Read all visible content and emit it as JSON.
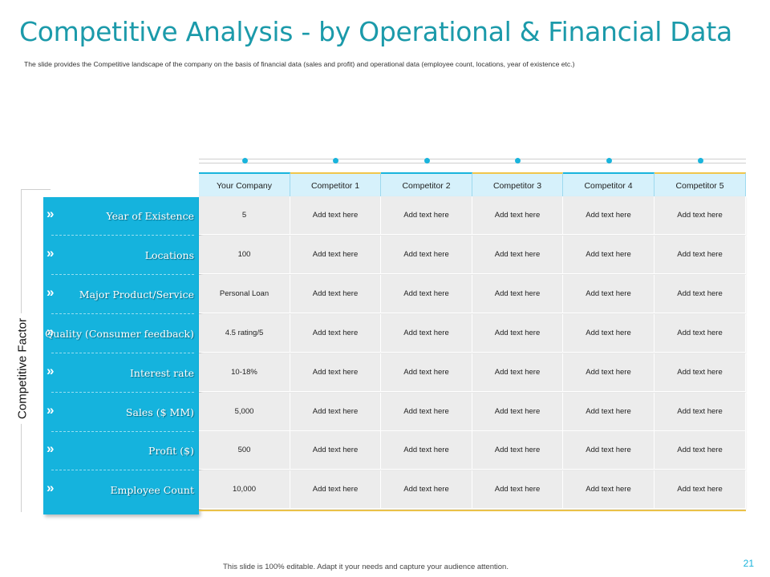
{
  "slide": {
    "title": "Competitive Analysis - by Operational & Financial Data",
    "subtitle": "The slide provides the Competitive landscape of the company on the basis of financial data (sales and profit) and operational data (employee count, locations, year of existence etc.)",
    "side_label": "Competitive Factor",
    "footer": "This slide is 100% editable. Adapt it your needs and capture your audience attention.",
    "page_number": "21"
  },
  "colors": {
    "title": "#1b9aaa",
    "panel": "#15b3dd",
    "header_bg": "#d6f1fb",
    "accent_yellow": "#f0c64b",
    "accent_blue": "#19b4dc",
    "row_bg": "#ececec"
  },
  "table": {
    "headers": [
      "Your Company",
      "Competitor 1",
      "Competitor 2",
      "Competitor 3",
      "Competitor 4",
      "Competitor 5"
    ],
    "rows": [
      {
        "factor": "Year of Existence",
        "cells": [
          "5",
          "Add text here",
          "Add text here",
          "Add text here",
          "Add text here",
          "Add text here"
        ]
      },
      {
        "factor": "Locations",
        "cells": [
          "100",
          "Add text here",
          "Add text here",
          "Add text here",
          "Add text here",
          "Add text here"
        ]
      },
      {
        "factor": "Major Product/Service",
        "cells": [
          "Personal Loan",
          "Add text here",
          "Add text here",
          "Add text here",
          "Add text here",
          "Add text here"
        ]
      },
      {
        "factor": "Quality (Consumer feedback)",
        "cells": [
          "4.5 rating/5",
          "Add text here",
          "Add text here",
          "Add text here",
          "Add text here",
          "Add text here"
        ]
      },
      {
        "factor": "Interest rate",
        "cells": [
          "10-18%",
          "Add text here",
          "Add text here",
          "Add text here",
          "Add text here",
          "Add text here"
        ]
      },
      {
        "factor": "Sales ($ MM)",
        "cells": [
          "5,000",
          "Add text here",
          "Add text here",
          "Add text here",
          "Add text here",
          "Add text here"
        ]
      },
      {
        "factor": "Profit ($)",
        "cells": [
          "500",
          "Add text here",
          "Add text here",
          "Add text here",
          "Add text here",
          "Add text here"
        ]
      },
      {
        "factor": "Employee Count",
        "cells": [
          "10,000",
          "Add text here",
          "Add text here",
          "Add text here",
          "Add text here",
          "Add text here"
        ]
      }
    ]
  },
  "icons": {
    "row_marker": "double-chevron-right-icon",
    "header_marker": "dot-icon"
  }
}
